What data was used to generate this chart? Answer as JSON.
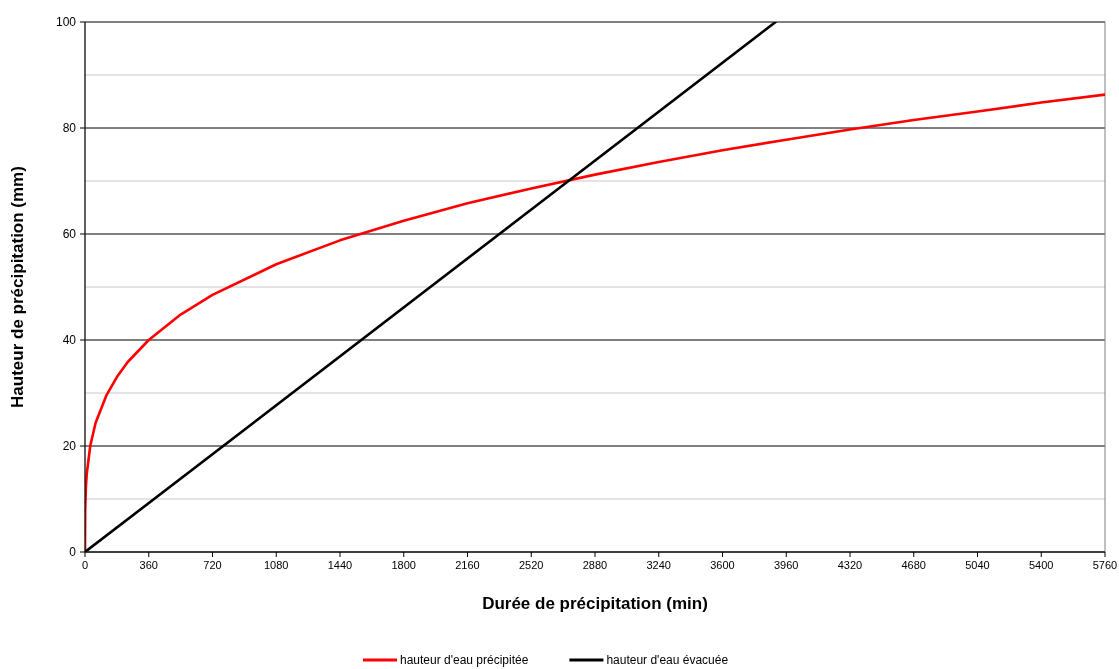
{
  "chart_data": {
    "type": "line",
    "xlabel": "Durée de précipitation (min)",
    "ylabel": "Hauteur de précipitation (mm)",
    "xlim": [
      0,
      5760
    ],
    "xticks": [
      0,
      360,
      720,
      1080,
      1440,
      1800,
      2160,
      2520,
      2880,
      3240,
      3600,
      3960,
      4320,
      4680,
      5040,
      5400,
      5760
    ],
    "ylim": [
      0,
      100
    ],
    "yticks": [
      0,
      {
        "value": 10,
        "label": null
      },
      20,
      {
        "value": 30,
        "label": null
      },
      40,
      {
        "value": 50,
        "label": null
      },
      60,
      {
        "value": 70,
        "label": null
      },
      80,
      {
        "value": 90,
        "label": null
      },
      100
    ],
    "grid": "y",
    "legend": "bottom",
    "marker": "none",
    "line_style": "solid",
    "series": [
      {
        "name": "hauteur d'eau précipitée",
        "color": "#ff0000",
        "x": [
          0,
          1,
          5,
          10,
          30,
          60,
          120,
          180,
          240,
          360,
          540,
          720,
          1080,
          1440,
          1800,
          2160,
          2520,
          2880,
          3240,
          3600,
          3960,
          4320,
          4680,
          5040,
          5400,
          5760
        ],
        "values": [
          0,
          7.8,
          12.2,
          14.8,
          20.1,
          24.4,
          29.5,
          33.0,
          35.8,
          40.0,
          44.8,
          48.5,
          54.3,
          58.8,
          62.5,
          65.8,
          68.6,
          71.2,
          73.6,
          75.8,
          77.8,
          79.7,
          81.5,
          83.1,
          84.8,
          86.3
        ]
      },
      {
        "name": "hauteur d'eau évacuée",
        "color": "#000000",
        "x": [
          0,
          3900
        ],
        "values": [
          0,
          100
        ]
      }
    ]
  }
}
